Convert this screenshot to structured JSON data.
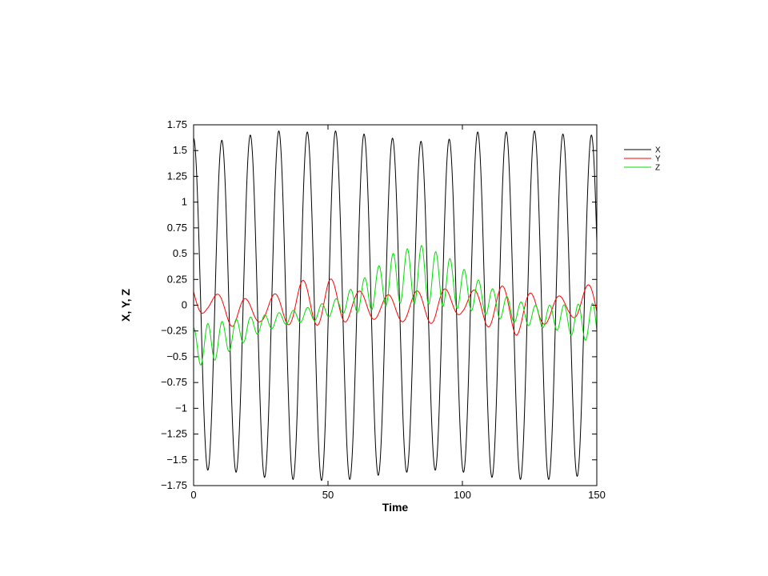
{
  "chart_data": {
    "type": "line",
    "title": "",
    "xlabel": "Time",
    "ylabel": "X, Y, Z",
    "xlim": [
      0,
      150
    ],
    "ylim": [
      -1.75,
      1.75
    ],
    "xticks": [
      "0",
      "50",
      "100",
      "150"
    ],
    "xtick_values": [
      0,
      50,
      100,
      150
    ],
    "yticks": [
      "1.75",
      "1.5",
      "1.25",
      "1",
      "0.75",
      "0.5",
      "0.25",
      "0",
      "−0.25",
      "−0.5",
      "−0.75",
      "−1",
      "−1.25",
      "−1.5",
      "−1.75"
    ],
    "ytick_values": [
      1.75,
      1.5,
      1.25,
      1,
      0.75,
      0.5,
      0.25,
      0,
      -0.25,
      -0.5,
      -0.75,
      -1,
      -1.25,
      -1.5,
      -1.75
    ],
    "grid": false,
    "legend_position": "outside-right-top",
    "series": [
      {
        "name": "X",
        "color": "#000000",
        "peak_times": [
          0,
          10.5,
          21.1,
          31.7,
          42.3,
          52.8,
          63.4,
          74.0,
          84.6,
          95.1,
          105.7,
          116.3,
          126.8,
          137.4,
          148.0
        ],
        "peak_values": [
          1.62,
          1.6,
          1.65,
          1.69,
          1.68,
          1.69,
          1.66,
          1.62,
          1.59,
          1.61,
          1.68,
          1.68,
          1.69,
          1.66,
          1.65
        ],
        "trough_times": [
          5.3,
          15.8,
          26.4,
          37.0,
          47.6,
          58.1,
          68.7,
          79.3,
          89.9,
          100.4,
          111.0,
          121.6,
          132.1,
          142.7
        ],
        "trough_values": [
          -1.6,
          -1.62,
          -1.67,
          -1.69,
          -1.7,
          -1.69,
          -1.65,
          -1.62,
          -1.6,
          -1.62,
          -1.67,
          -1.69,
          -1.69,
          -1.66
        ]
      },
      {
        "name": "Y",
        "color": "#ff0000",
        "envelope_times": [
          0,
          5,
          15,
          25,
          40,
          50,
          60,
          70,
          80,
          90,
          100,
          110,
          120,
          130,
          140,
          150
        ],
        "envelope_values": [
          0.16,
          0.08,
          0.17,
          0.1,
          0.22,
          0.24,
          0.14,
          0.12,
          0.14,
          0.18,
          0.1,
          0.2,
          0.24,
          0.14,
          0.1,
          0.22
        ],
        "offset_times": [
          0,
          20,
          45,
          75,
          100,
          125,
          150
        ],
        "offset_values": [
          0.05,
          -0.08,
          0.04,
          -0.03,
          0.02,
          -0.07,
          0.03
        ],
        "period": 10.6,
        "phase_deg": 60
      },
      {
        "name": "Z",
        "color": "#00dd00",
        "envelope_times": [
          0,
          5,
          15,
          25,
          35,
          45,
          55,
          62,
          75,
          85,
          95,
          105,
          115,
          125,
          135,
          150
        ],
        "envelope_values": [
          0.18,
          0.2,
          0.14,
          0.08,
          0.06,
          0.07,
          0.08,
          0.15,
          0.25,
          0.28,
          0.24,
          0.16,
          0.12,
          0.1,
          0.12,
          0.2
        ],
        "offset_times": [
          0,
          5,
          15,
          25,
          35,
          45,
          55,
          65,
          75,
          85,
          95,
          105,
          115,
          125,
          135,
          150
        ],
        "offset_values": [
          -0.4,
          -0.38,
          -0.28,
          -0.18,
          -0.12,
          -0.08,
          0.0,
          0.12,
          0.27,
          0.3,
          0.22,
          0.1,
          -0.02,
          -0.1,
          -0.12,
          -0.18
        ],
        "period": 5.3,
        "phase_deg": 0
      }
    ]
  }
}
